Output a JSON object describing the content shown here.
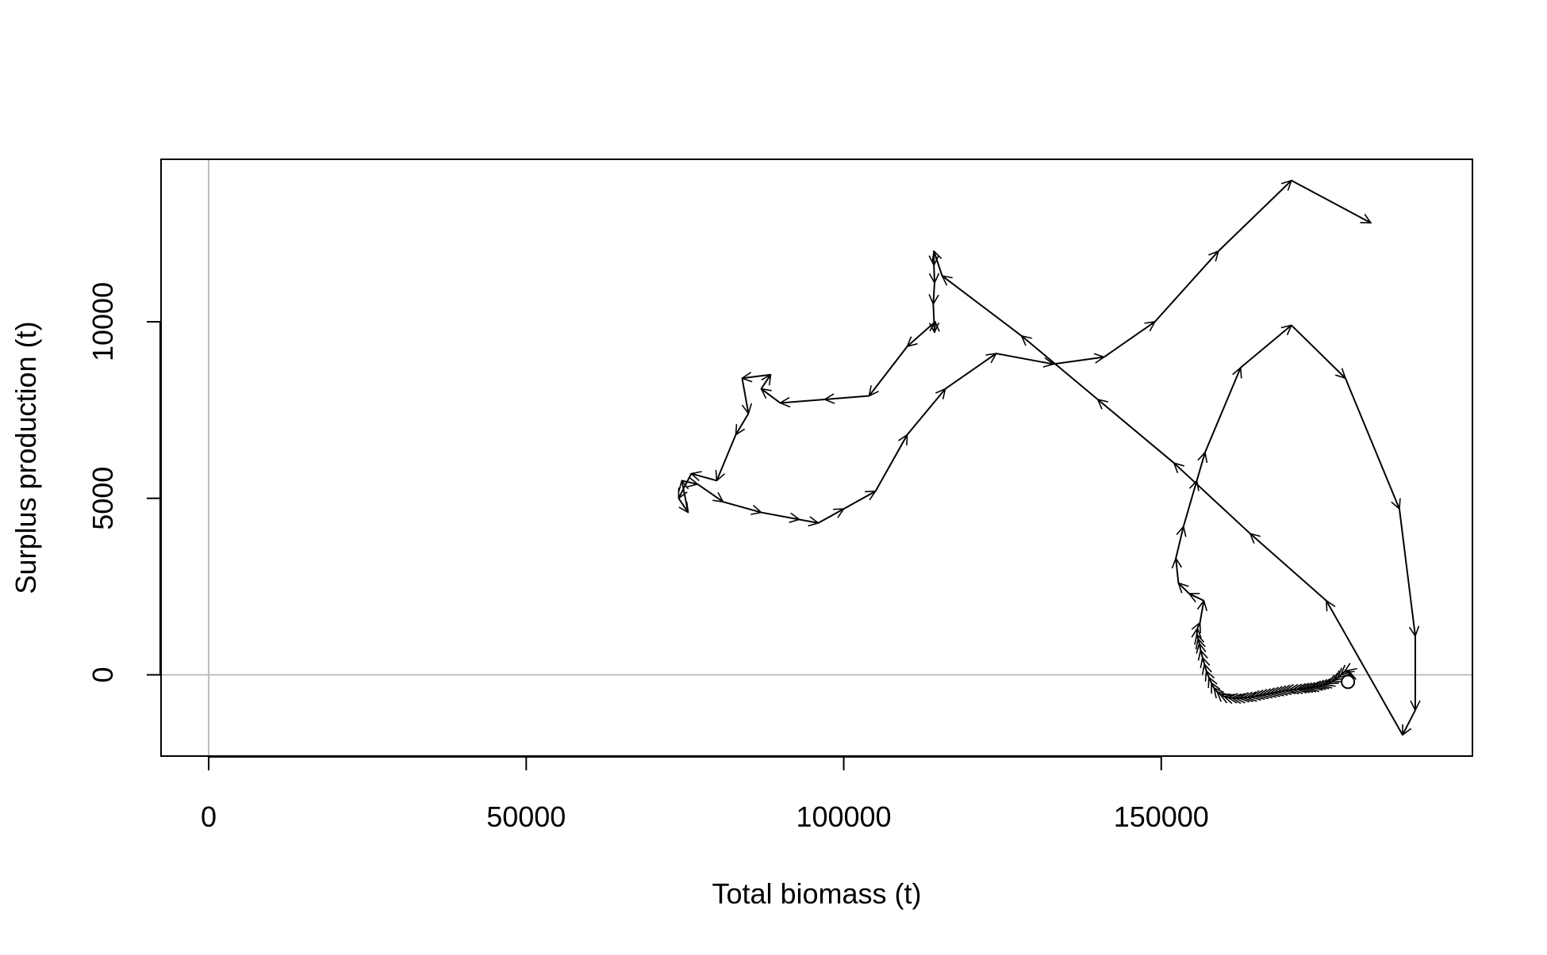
{
  "chart_data": {
    "type": "line",
    "title": "",
    "xlabel": "Total biomass (t)",
    "ylabel": "Surplus production (t)",
    "xlim": [
      -7500,
      199000
    ],
    "ylim": [
      -2300,
      14600
    ],
    "x_ticks": [
      0,
      50000,
      100000,
      150000
    ],
    "x_tick_labels": [
      "0",
      "50000",
      "100000",
      "150000"
    ],
    "y_ticks": [
      0,
      5000,
      10000
    ],
    "y_tick_labels": [
      "0",
      "5000",
      "10000"
    ],
    "reference_lines": {
      "x": 0,
      "y": 0,
      "color": "#bebebe"
    },
    "grid": false,
    "legend": "none",
    "line_color": "#000000",
    "marker_color": "#000000",
    "markers": "arrows between consecutive points, open circle at start",
    "series": [
      {
        "x": [
          179400,
          179800,
          179600,
          179200,
          178800,
          178300,
          177800,
          177300,
          176800,
          176300,
          175800,
          175300,
          174800,
          174300,
          173800,
          173300,
          172800,
          172300,
          171800,
          171300,
          170700,
          170100,
          169500,
          168900,
          168300,
          167700,
          167100,
          166500,
          165900,
          165300,
          164700,
          164100,
          163500,
          162900,
          162300,
          161700,
          161100,
          160500,
          159900,
          159300,
          158800,
          158300,
          157900,
          157500,
          157100,
          156800,
          156500,
          156200,
          156000,
          155800,
          155600,
          155700,
          156100,
          156700,
          154400,
          152700,
          152300,
          153500,
          155600,
          156900,
          162500,
          170500,
          179000,
          187500,
          190000,
          190000,
          188000,
          176000,
          164000,
          152000,
          140000,
          128000,
          115500,
          114200,
          114200,
          114300,
          114100,
          114300,
          114400,
          110000,
          104000,
          97000,
          90000,
          87000,
          88500,
          84000,
          85000,
          83000,
          80000,
          76000,
          74000,
          75500,
          74500,
          77000,
          81000,
          87000,
          93000,
          96000,
          100000,
          105000,
          110000,
          116000,
          124000,
          133000,
          141000,
          149000,
          159000,
          170500,
          183000
        ],
        "y": [
          -200,
          -50,
          100,
          120,
          80,
          0,
          -80,
          -150,
          -200,
          -250,
          -280,
          -300,
          -320,
          -340,
          -360,
          -370,
          -380,
          -390,
          -400,
          -410,
          -420,
          -430,
          -450,
          -470,
          -490,
          -510,
          -530,
          -550,
          -570,
          -590,
          -610,
          -630,
          -640,
          -650,
          -660,
          -660,
          -650,
          -640,
          -610,
          -560,
          -480,
          -370,
          -230,
          -70,
          110,
          300,
          490,
          700,
          890,
          1020,
          1150,
          1320,
          1480,
          2100,
          2300,
          2600,
          3300,
          4200,
          5500,
          6300,
          8700,
          9900,
          8400,
          4700,
          1100,
          -1000,
          -1700,
          2100,
          4000,
          6000,
          7800,
          9600,
          11300,
          12000,
          11600,
          11100,
          10500,
          9700,
          10000,
          9300,
          7900,
          7800,
          7700,
          8100,
          8500,
          8400,
          7400,
          6800,
          5500,
          5700,
          5000,
          4600,
          5500,
          5400,
          4900,
          4600,
          4400,
          4300,
          4700,
          5200,
          6800,
          8100,
          9100,
          8800,
          9000,
          10000,
          12000,
          14000,
          12800
        ]
      }
    ]
  }
}
